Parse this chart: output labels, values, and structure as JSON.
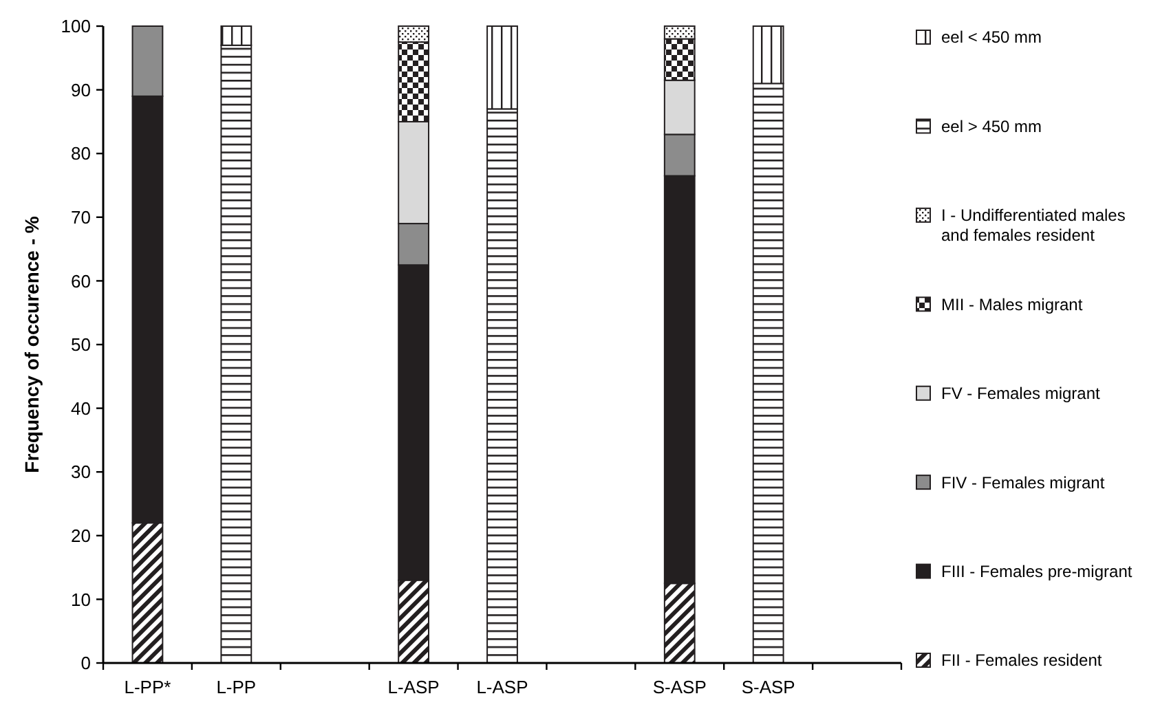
{
  "chart_data": {
    "type": "bar",
    "stacked": true,
    "ylabel": "Frequency of occurence - %",
    "categories": [
      "L-PP*",
      "L-PP",
      null,
      "L-ASP",
      "L-ASP",
      null,
      "S-ASP",
      "S-ASP",
      null
    ],
    "ylim": [
      0,
      100
    ],
    "yticks": [
      0,
      10,
      20,
      30,
      40,
      50,
      60,
      70,
      80,
      90,
      100
    ],
    "legend": "right",
    "grid": false,
    "series": [
      {
        "name": "FII - Females resident",
        "color": "#231f20",
        "values": [
          22,
          null,
          null,
          13,
          null,
          null,
          12.5,
          null,
          null
        ]
      },
      {
        "name": "FIII - Females pre-migrant",
        "color": "#231f20",
        "values": [
          67,
          null,
          null,
          49.5,
          null,
          null,
          64,
          null,
          null
        ]
      },
      {
        "name": "FIV - Females migrant",
        "color": "#8c8c8c",
        "values": [
          11,
          null,
          null,
          6.5,
          null,
          null,
          6.5,
          null,
          null
        ]
      },
      {
        "name": "FV - Females migrant",
        "color": "#d9d9d9",
        "values": [
          null,
          null,
          null,
          16,
          null,
          null,
          8.5,
          null,
          null
        ]
      },
      {
        "name": "MII - Males migrant",
        "color": "#231f20",
        "values": [
          null,
          null,
          null,
          12.5,
          null,
          null,
          6.5,
          null,
          null
        ]
      },
      {
        "name": "I - Undifferentiated males and females resident",
        "color": "#231f20",
        "values": [
          null,
          null,
          null,
          2.5,
          null,
          null,
          2,
          null,
          null
        ]
      },
      {
        "name": "eel > 450 mm",
        "color": "#231f20",
        "values": [
          null,
          97,
          null,
          null,
          87,
          null,
          null,
          91,
          null
        ]
      },
      {
        "name": "eel < 450 mm",
        "color": "#231f20",
        "values": [
          null,
          3,
          null,
          null,
          13,
          null,
          null,
          9,
          null
        ]
      }
    ]
  }
}
